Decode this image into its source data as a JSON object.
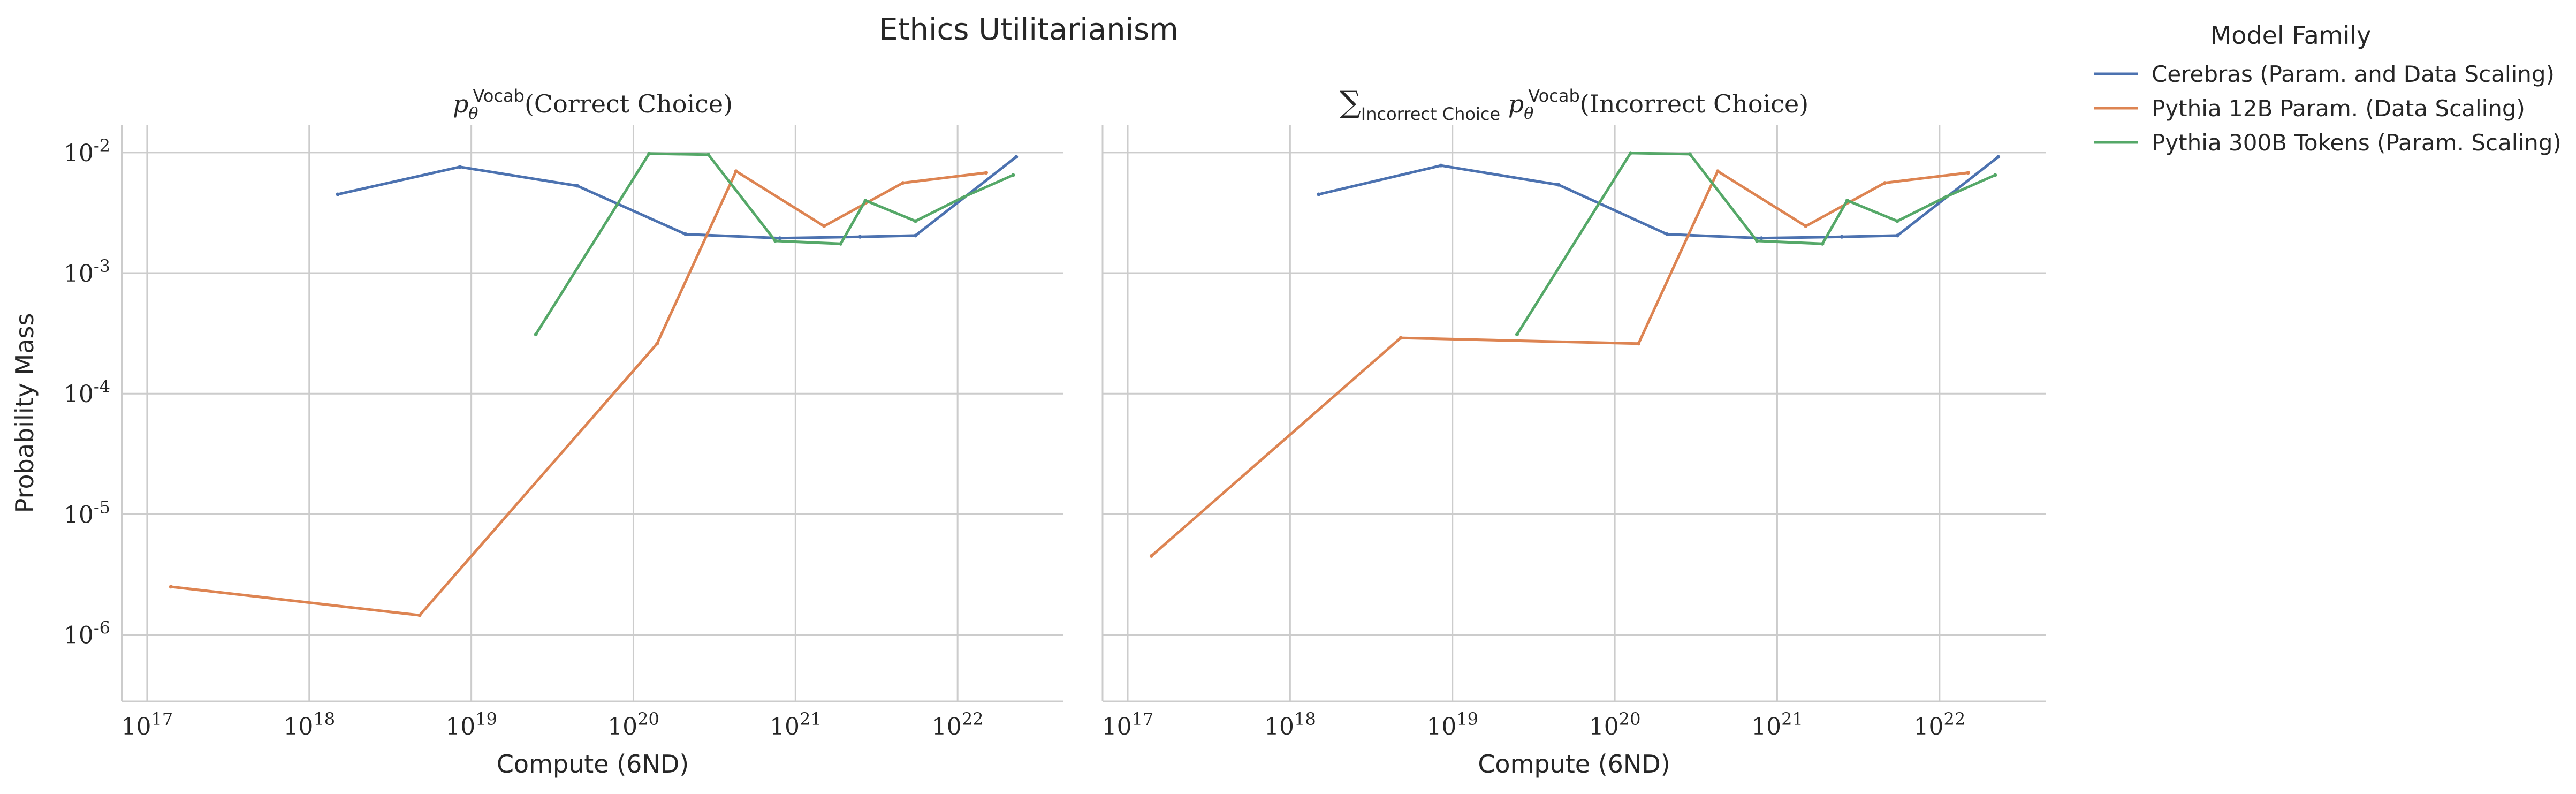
{
  "chart_data": {
    "type": "line",
    "title": "Ethics Utilitarianism",
    "xscale": "log",
    "yscale": "log",
    "grid": true,
    "xlim": [
      7e+16,
      4.5e+22
    ],
    "ylim": [
      2.8e-07,
      0.017
    ],
    "x_ticks": [
      "10^17",
      "10^18",
      "10^19",
      "10^20",
      "10^21",
      "10^22"
    ],
    "y_ticks": [
      "10^-6",
      "10^-5",
      "10^-4",
      "10^-3",
      "10^-2"
    ],
    "xlabel": "Compute (6ND)",
    "ylabel": "Probability Mass",
    "legend": {
      "title": "Model Family",
      "placement": "outside-right",
      "entries": [
        {
          "label": "Cerebras (Param. and Data Scaling)",
          "color": "#4c72b0"
        },
        {
          "label": "Pythia 12B Param. (Data Scaling)",
          "color": "#dd8452"
        },
        {
          "label": "Pythia 300B Tokens (Param. Scaling)",
          "color": "#55a868"
        }
      ]
    },
    "panels": [
      {
        "title_text": "(Correct Choice)",
        "title_super": "Vocab",
        "series": [
          {
            "name": "Cerebras (Param. and Data Scaling)",
            "color": "#4c72b0",
            "x": [
              1.5e+18,
              8.5e+18,
              4.5e+19,
              2.1e+20,
              8e+20,
              2.5e+21,
              5.5e+21,
              2.3e+22
            ],
            "y": [
              0.0045,
              0.0076,
              0.0053,
              0.0021,
              0.00195,
              0.002,
              0.00205,
              0.0092
            ]
          },
          {
            "name": "Pythia 12B Param. (Data Scaling)",
            "color": "#dd8452",
            "x": [
              1.4e+17,
              4.8e+18,
              1.4e+20,
              4.3e+20,
              1.5e+21,
              4.6e+21,
              1.5e+22
            ],
            "y": [
              2.5e-06,
              1.45e-06,
              0.00026,
              0.007,
              0.00245,
              0.0056,
              0.0068
            ]
          },
          {
            "name": "Pythia 300B Tokens (Param. Scaling)",
            "color": "#55a868",
            "x": [
              2.5e+19,
              1.25e+20,
              2.9e+20,
              7.5e+20,
              1.9e+21,
              2.7e+21,
              5.5e+21,
              1.1e+22,
              2.2e+22
            ],
            "y": [
              0.00031,
              0.0098,
              0.0096,
              0.00185,
              0.00175,
              0.004,
              0.0027,
              0.0043,
              0.0065
            ]
          }
        ]
      },
      {
        "title_text": "(Incorrect Choice)",
        "title_super": "Vocab",
        "title_sub": "Incorrect Choice",
        "series": [
          {
            "name": "Cerebras (Param. and Data Scaling)",
            "color": "#4c72b0",
            "x": [
              1.5e+18,
              8.5e+18,
              4.5e+19,
              2.1e+20,
              8e+20,
              2.5e+21,
              5.5e+21,
              2.3e+22
            ],
            "y": [
              0.0045,
              0.0078,
              0.0054,
              0.0021,
              0.00195,
              0.002,
              0.00205,
              0.0092
            ]
          },
          {
            "name": "Pythia 12B Param. (Data Scaling)",
            "color": "#dd8452",
            "x": [
              1.4e+17,
              4.8e+18,
              1.4e+20,
              4.3e+20,
              1.5e+21,
              4.6e+21,
              1.5e+22
            ],
            "y": [
              4.5e-06,
              0.00029,
              0.00026,
              0.007,
              0.00245,
              0.0056,
              0.0068
            ]
          },
          {
            "name": "Pythia 300B Tokens (Param. Scaling)",
            "color": "#55a868",
            "x": [
              2.5e+19,
              1.25e+20,
              2.9e+20,
              7.5e+20,
              1.9e+21,
              2.7e+21,
              5.5e+21,
              1.1e+22,
              2.2e+22
            ],
            "y": [
              0.00031,
              0.0099,
              0.0097,
              0.00185,
              0.00175,
              0.004,
              0.0027,
              0.0043,
              0.0065
            ]
          }
        ]
      }
    ]
  }
}
